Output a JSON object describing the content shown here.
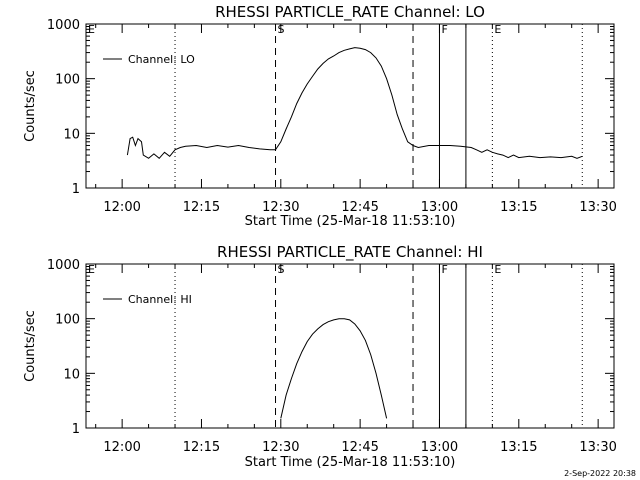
{
  "chart_data": [
    {
      "type": "line",
      "title": "RHESSI PARTICLE_RATE Channel: LO",
      "xlabel": "Start Time (25-Mar-18 11:53:10)",
      "ylabel": "Counts/sec",
      "y_scale": "log",
      "ylim": [
        1,
        1000
      ],
      "yticks": [
        "1",
        "10",
        "100",
        "1000"
      ],
      "xticks": [
        "12:00",
        "12:15",
        "12:30",
        "12:45",
        "13:00",
        "13:15",
        "13:30"
      ],
      "legend": {
        "placement": "top-left",
        "entries": [
          "Channel: LO"
        ]
      },
      "markers": [
        {
          "time": "11:53:10",
          "style": "dotted",
          "label": "E"
        },
        {
          "time": "12:10",
          "style": "dotted",
          "label": ""
        },
        {
          "time": "12:29",
          "style": "dashed",
          "label": "S"
        },
        {
          "time": "12:55",
          "style": "dashed",
          "label": ""
        },
        {
          "time": "13:00",
          "style": "solid",
          "label": "F"
        },
        {
          "time": "13:05",
          "style": "solid",
          "label": ""
        },
        {
          "time": "13:10",
          "style": "dotted",
          "label": "E"
        },
        {
          "time": "13:27",
          "style": "dotted",
          "label": ""
        }
      ],
      "series": [
        {
          "name": "Channel: LO",
          "points": [
            [
              "12:01",
              4
            ],
            [
              "12:01:30",
              8
            ],
            [
              "12:02",
              8.5
            ],
            [
              "12:02:30",
              6
            ],
            [
              "12:03",
              8
            ],
            [
              "12:03:40",
              7
            ],
            [
              "12:04",
              4
            ],
            [
              "12:05",
              3.5
            ],
            [
              "12:06",
              4.2
            ],
            [
              "12:07",
              3.5
            ],
            [
              "12:08",
              4.5
            ],
            [
              "12:09",
              3.8
            ],
            [
              "12:10",
              5
            ],
            [
              "12:11",
              5.5
            ],
            [
              "12:12",
              5.8
            ],
            [
              "12:14",
              6
            ],
            [
              "12:16",
              5.5
            ],
            [
              "12:18",
              6
            ],
            [
              "12:20",
              5.6
            ],
            [
              "12:22",
              6
            ],
            [
              "12:24",
              5.5
            ],
            [
              "12:26",
              5.2
            ],
            [
              "12:28",
              5
            ],
            [
              "12:29",
              5
            ],
            [
              "12:30",
              7
            ],
            [
              "12:31",
              12
            ],
            [
              "12:32",
              20
            ],
            [
              "12:33",
              35
            ],
            [
              "12:34",
              55
            ],
            [
              "12:35",
              80
            ],
            [
              "12:36",
              110
            ],
            [
              "12:37",
              150
            ],
            [
              "12:38",
              190
            ],
            [
              "12:39",
              230
            ],
            [
              "12:40",
              260
            ],
            [
              "12:41",
              300
            ],
            [
              "12:42",
              330
            ],
            [
              "12:43",
              350
            ],
            [
              "12:44",
              370
            ],
            [
              "12:45",
              360
            ],
            [
              "12:46",
              340
            ],
            [
              "12:47",
              300
            ],
            [
              "12:48",
              240
            ],
            [
              "12:49",
              170
            ],
            [
              "12:50",
              100
            ],
            [
              "12:51",
              50
            ],
            [
              "12:52",
              22
            ],
            [
              "12:53",
              12
            ],
            [
              "12:54",
              7
            ],
            [
              "12:55",
              6
            ],
            [
              "12:56",
              5.5
            ],
            [
              "12:58",
              6
            ],
            [
              "13:00",
              6
            ],
            [
              "13:02",
              6
            ],
            [
              "13:04",
              5.8
            ],
            [
              "13:06",
              5.5
            ],
            [
              "13:07",
              5
            ],
            [
              "13:08",
              4.5
            ],
            [
              "13:09",
              5
            ],
            [
              "13:10",
              4.5
            ],
            [
              "13:11",
              4.2
            ],
            [
              "13:12",
              4
            ],
            [
              "13:13",
              3.6
            ],
            [
              "13:14",
              4
            ],
            [
              "13:15",
              3.6
            ],
            [
              "13:17",
              3.8
            ],
            [
              "13:19",
              3.6
            ],
            [
              "13:21",
              3.7
            ],
            [
              "13:23",
              3.6
            ],
            [
              "13:25",
              3.8
            ],
            [
              "13:26",
              3.5
            ],
            [
              "13:27",
              3.8
            ]
          ]
        }
      ]
    },
    {
      "type": "line",
      "title": "RHESSI PARTICLE_RATE Channel: HI",
      "xlabel": "Start Time (25-Mar-18 11:53:10)",
      "ylabel": "Counts/sec",
      "y_scale": "log",
      "ylim": [
        1,
        1000
      ],
      "yticks": [
        "1",
        "10",
        "100",
        "1000"
      ],
      "xticks": [
        "12:00",
        "12:15",
        "12:30",
        "12:45",
        "13:00",
        "13:15",
        "13:30"
      ],
      "legend": {
        "placement": "top-left",
        "entries": [
          "Channel: HI"
        ]
      },
      "markers": [
        {
          "time": "11:53:10",
          "style": "dotted",
          "label": "E"
        },
        {
          "time": "12:10",
          "style": "dotted",
          "label": ""
        },
        {
          "time": "12:29",
          "style": "dashed",
          "label": "S"
        },
        {
          "time": "12:55",
          "style": "dashed",
          "label": ""
        },
        {
          "time": "13:00",
          "style": "solid",
          "label": "F"
        },
        {
          "time": "13:05",
          "style": "solid",
          "label": ""
        },
        {
          "time": "13:10",
          "style": "dotted",
          "label": "E"
        },
        {
          "time": "13:27",
          "style": "dotted",
          "label": ""
        }
      ],
      "series": [
        {
          "name": "Channel: HI",
          "points": [
            [
              "12:30",
              1.5
            ],
            [
              "12:31",
              4
            ],
            [
              "12:32",
              8
            ],
            [
              "12:33",
              15
            ],
            [
              "12:34",
              25
            ],
            [
              "12:35",
              38
            ],
            [
              "12:36",
              52
            ],
            [
              "12:37",
              65
            ],
            [
              "12:38",
              78
            ],
            [
              "12:39",
              88
            ],
            [
              "12:40",
              95
            ],
            [
              "12:41",
              100
            ],
            [
              "12:42",
              100
            ],
            [
              "12:43",
              95
            ],
            [
              "12:44",
              80
            ],
            [
              "12:45",
              60
            ],
            [
              "12:46",
              40
            ],
            [
              "12:47",
              22
            ],
            [
              "12:48",
              10
            ],
            [
              "12:49",
              4
            ],
            [
              "12:50",
              1.5
            ]
          ]
        }
      ]
    }
  ],
  "footer": {
    "timestamp": "2-Sep-2022 20:38"
  }
}
